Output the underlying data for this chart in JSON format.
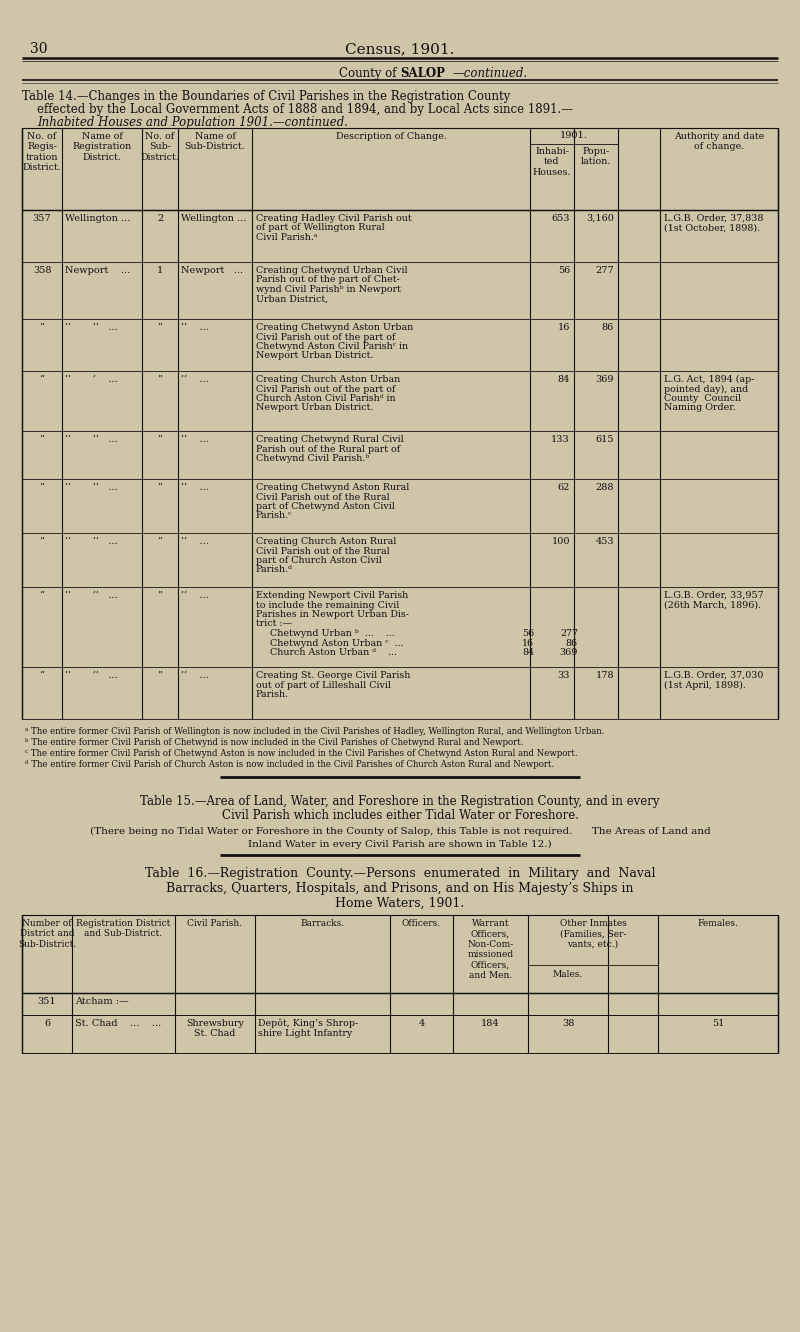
{
  "bg_color": "#cfc5a8",
  "page_number": "30",
  "page_title": "Census, 1901.",
  "county_subtitle_normal": "County of ",
  "county_subtitle_bold": "SALOP",
  "county_subtitle_italic": "—continued.",
  "table14_title_line1": "Table 14.—Changes in the Boundaries of Civil Parishes in the Registration County",
  "table14_title_line2": "effected by the Local Government Acts of 1888 and 1894, and by Local Acts since 1891.—",
  "table14_title_line3": "Inhabited Houses and Population 1901.—continued.",
  "rows": [
    {
      "col1": "357",
      "col2": "Wellington ...",
      "col3": "2",
      "col4": "Wellington ...",
      "col5": [
        "Creating Hadley Civil Parish out",
        "of part of Wellington Rural",
        "Civil Parish.ᵃ"
      ],
      "col6a": "653",
      "col6b": "3,160",
      "col7": [
        "L.G.B. Order, 37,838",
        "(1st October, 1898)."
      ]
    },
    {
      "col1": "358",
      "col2": "Newport    ...",
      "col3": "1",
      "col4": "Newport   ...",
      "col5": [
        "Creating Chetwynd Urban Civil",
        "Parish out of the part of Chet-",
        "wynd Civil Parishᵇ in Newport",
        "Urban District,"
      ],
      "col6a": "56",
      "col6b": "277",
      "col7": []
    },
    {
      "col1": "’’",
      "col2": "’’       ’’   ...",
      "col3": "’’",
      "col4": "’’    ...",
      "col5": [
        "Creating Chetwynd Aston Urban",
        "Civil Parish out of the part of",
        "Chetwynd Aston Civil Parishᶜ in",
        "Newport Urban District."
      ],
      "col6a": "16",
      "col6b": "86",
      "col7": []
    },
    {
      "col1": "’’",
      "col2": "’’       ’    ...",
      "col3": "’’",
      "col4": "’’    ...",
      "col5": [
        "Creating Church Aston Urban",
        "Civil Parish out of the part of",
        "Church Aston Civil Parishᵈ in",
        "Newport Urban District."
      ],
      "col6a": "84",
      "col6b": "369",
      "col7": [
        "L.G. Act, 1894 (ap-",
        "pointed day), and",
        "County  Council",
        "Naming Order."
      ]
    },
    {
      "col1": "’’",
      "col2": "’’       ’’   ...",
      "col3": "’’",
      "col4": "’’    ...",
      "col5": [
        "Creating Chetwynd Rural Civil",
        "Parish out of the Rural part of",
        "Chetwynd Civil Parish.ᵇ"
      ],
      "col6a": "133",
      "col6b": "615",
      "col7": []
    },
    {
      "col1": "’’",
      "col2": "’’       ’’   ...",
      "col3": "’’",
      "col4": "’’    ...",
      "col5": [
        "Creating Chetwynd Aston Rural",
        "Civil Parish out of the Rural",
        "part of Chetwynd Aston Civil",
        "Parish.ᶜ"
      ],
      "col6a": "62",
      "col6b": "288",
      "col7": []
    },
    {
      "col1": "’’",
      "col2": "’’       ’’   ...",
      "col3": "’’",
      "col4": "’’    ...",
      "col5": [
        "Creating Church Aston Rural",
        "Civil Parish out of the Rural",
        "part of Church Aston Civil",
        "Parish.ᵈ"
      ],
      "col6a": "100",
      "col6b": "453",
      "col7": []
    },
    {
      "col1": "’’",
      "col2": "’’       ’’   ...",
      "col3": "’’",
      "col4": "’’    ...",
      "col5": [
        "Extending Newport Civil Parish",
        "to include the remaining Civil",
        "Parishes in Newport Urban Dis-",
        "trict :—",
        "  Chetwynd Urban ᵇ  ...    ...   ",
        "  Chetwynd Aston Urban ᶜ  ...  ",
        "  Church Aston Urban ᵈ    ...   "
      ],
      "col5_sub": [
        {
          "text": "  Chetwynd Urban ᵇ  ...    ...",
          "h": "56",
          "p": "277"
        },
        {
          "text": "  Chetwynd Aston Urban ᶜ  ...",
          "h": "16",
          "p": "86"
        },
        {
          "text": "  Church Aston Urban ᵈ    ...",
          "h": "84",
          "p": "369"
        }
      ],
      "col6a": "",
      "col6b": "",
      "col7": [
        "L.G.B. Order, 33,957",
        "(26th March, 1896)."
      ]
    },
    {
      "col1": "’’",
      "col2": "’’       ’’   ...",
      "col3": "’’",
      "col4": "’’    ...",
      "col5": [
        "Creating St. George Civil Parish",
        "out of part of Lilleshall Civil",
        "Parish."
      ],
      "col6a": "33",
      "col6b": "178",
      "col7": [
        "L.G.B. Order, 37,030",
        "(1st April, 1898)."
      ]
    }
  ],
  "footnotes": [
    "ᵃ The entire former Civil Parish of Wellington is now included in the Civil Parishes of Hadley, Wellington Rural, and Wellington Urban.",
    "ᵇ The entire former Civil Parish of Chetwynd is now included in the Civil Parishes of Chetwynd Rural and Newport.",
    "ᶜ The entire former Civil Parish of Chetwynd Aston is now included in the Civil Parishes of Chetwynd Aston Rural and Newport.",
    "ᵈ The entire former Civil Parish of Church Aston is now included in the Civil Parishes of Church Aston Rural and Newport."
  ],
  "table15_title_line1": "Table 15.—Area of Land, Water, and Foreshore in the Registration County, and in every",
  "table15_title_line2": "Civil Parish which includes either Tidal Water or Foreshore.",
  "table15_body_line1": "(There being no Tidal Water or Foreshore in the County of Salop, this Table is not required.      The Areas of Land and",
  "table15_body_line2": "Inland Water in every Civil Parish are shown in Table 12.)",
  "table16_title_line1": "Table  16.—Registration  County.—Persons  enumerated  in  Military  and  Naval",
  "table16_title_line2": "Barracks, Quarters, Hospitals, and Prisons, and on His Majesty’s Ships in",
  "table16_title_line3": "Home Waters, 1901.",
  "t16_rows": [
    {
      "c1": "351",
      "c2": "Atcham :—",
      "c3": "",
      "c4": "",
      "c5": "",
      "c6": "",
      "c7": "",
      "c8": ""
    },
    {
      "c1": "6",
      "c2": "St. Chad    ...    ...",
      "c3": "Shrewsbury\nSt. Chad",
      "c4": "Depôt, King’s Shrop-\nshire Light Infantry",
      "c5": "4",
      "c6": "184",
      "c7": "38",
      "c8": "51"
    }
  ]
}
